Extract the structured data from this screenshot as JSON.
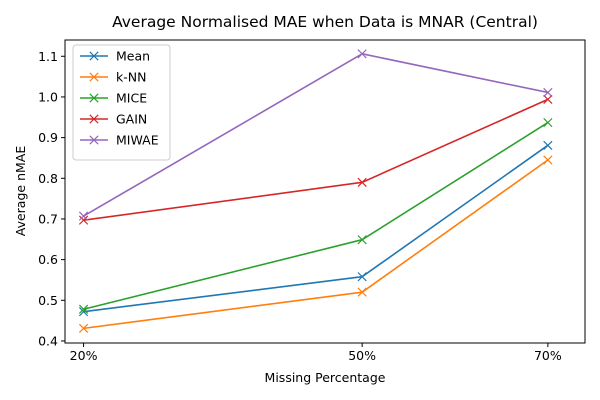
{
  "chart_data": {
    "type": "line",
    "title": "Average Normalised MAE when Data is MNAR (Central)",
    "xlabel": "Missing Percentage",
    "ylabel": "Average nMAE",
    "x": [
      "20%",
      "50%",
      "70%"
    ],
    "x_values": [
      20,
      50,
      70
    ],
    "xlim": [
      18,
      74
    ],
    "ylim": [
      0.395,
      1.14
    ],
    "yticks": [
      0.4,
      0.5,
      0.6,
      0.7,
      0.8,
      0.9,
      1.0,
      1.1
    ],
    "ytick_labels": [
      "0.4",
      "0.5",
      "0.6",
      "0.7",
      "0.8",
      "0.9",
      "1.0",
      "1.1"
    ],
    "grid": false,
    "legend_position": "upper-left",
    "marker": "x",
    "series": [
      {
        "name": "Mean",
        "color": "#1f77b4",
        "values": [
          0.472,
          0.558,
          0.881
        ]
      },
      {
        "name": "k-NN",
        "color": "#ff7f0e",
        "values": [
          0.431,
          0.52,
          0.845
        ]
      },
      {
        "name": "MICE",
        "color": "#2ca02c",
        "values": [
          0.478,
          0.649,
          0.937
        ]
      },
      {
        "name": "GAIN",
        "color": "#d62728",
        "values": [
          0.697,
          0.79,
          0.994
        ]
      },
      {
        "name": "MIWAE",
        "color": "#9467bd",
        "values": [
          0.707,
          1.106,
          1.011
        ]
      }
    ]
  }
}
